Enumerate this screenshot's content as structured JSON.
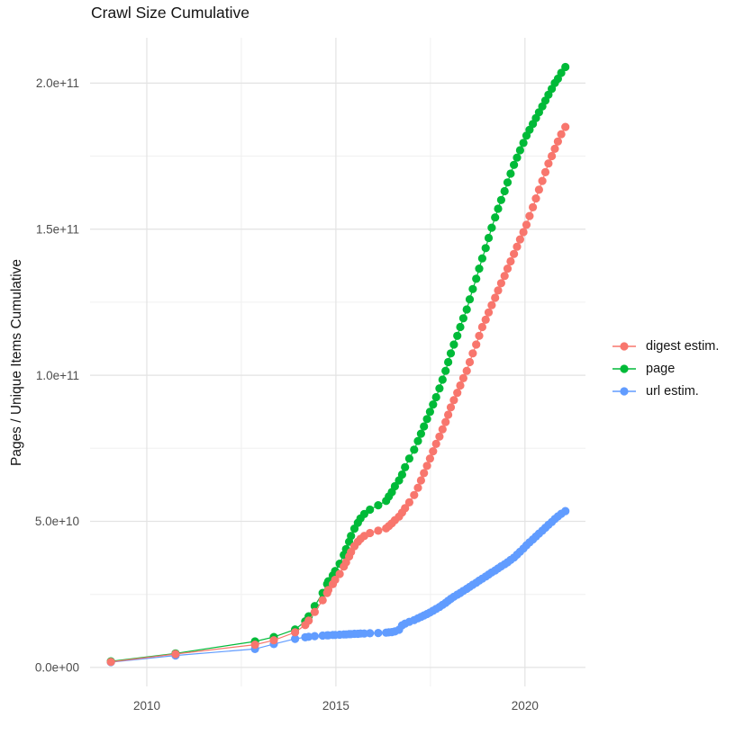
{
  "chart_data": {
    "type": "scatter",
    "title": "Crawl Size Cumulative",
    "xlabel": "",
    "ylabel": "Pages / Unique Items Cumulative",
    "y_unit": "items (stored values are billions, i.e. value * 1e9)",
    "xlim": [
      2008.5,
      2021.6
    ],
    "ylim_billions": [
      -6.5,
      215.5
    ],
    "x_ticks": [
      {
        "value": 2010,
        "label": "2010"
      },
      {
        "value": 2015,
        "label": "2015"
      },
      {
        "value": 2020,
        "label": "2020"
      }
    ],
    "y_ticks": [
      {
        "value": 0,
        "label": "0.0e+00"
      },
      {
        "value": 50,
        "label": "5.0e+10"
      },
      {
        "value": 100,
        "label": "1.0e+11"
      },
      {
        "value": 150,
        "label": "1.5e+11"
      },
      {
        "value": 200,
        "label": "2.0e+11"
      }
    ],
    "x_minor_ticks": [
      2012.5,
      2017.5
    ],
    "y_minor_ticks": [
      25,
      75,
      125,
      175
    ],
    "grid": "major+minor, light gray on white, no axis lines, no tick marks",
    "legend_position": "right-center",
    "style": {
      "major_grid_color": "#e3e3e3",
      "minor_grid_color": "#f0f0f0",
      "tick_label_color": "#4d4d4d",
      "text_color": "#141414",
      "background": "#ffffff",
      "point_radius": 4.6
    },
    "series": [
      {
        "name": "digest estim.",
        "color": "#F8766D",
        "points": [
          [
            2009.05,
            1.9
          ],
          [
            2010.76,
            4.6
          ],
          [
            2012.86,
            7.8
          ],
          [
            2013.36,
            9.3
          ],
          [
            2013.92,
            12.0
          ],
          [
            2014.19,
            14.5
          ],
          [
            2014.28,
            16.0
          ],
          [
            2014.44,
            19.0
          ],
          [
            2014.65,
            23.0
          ],
          [
            2014.77,
            25.5
          ],
          [
            2014.8,
            26.5
          ],
          [
            2014.92,
            28.5
          ],
          [
            2014.98,
            30.0
          ],
          [
            2015.1,
            32.0
          ],
          [
            2015.21,
            34.5
          ],
          [
            2015.27,
            36.0
          ],
          [
            2015.35,
            38.0
          ],
          [
            2015.4,
            39.5
          ],
          [
            2015.49,
            41.5
          ],
          [
            2015.58,
            43.0
          ],
          [
            2015.65,
            44.0
          ],
          [
            2015.75,
            45.0
          ],
          [
            2015.9,
            46.0
          ],
          [
            2016.12,
            46.8
          ],
          [
            2016.33,
            47.6
          ],
          [
            2016.4,
            48.4
          ],
          [
            2016.48,
            49.3
          ],
          [
            2016.56,
            50.4
          ],
          [
            2016.67,
            51.6
          ],
          [
            2016.75,
            53.0
          ],
          [
            2016.83,
            54.5
          ],
          [
            2016.94,
            56.5
          ],
          [
            2017.07,
            59.0
          ],
          [
            2017.17,
            61.5
          ],
          [
            2017.25,
            64.0
          ],
          [
            2017.33,
            66.5
          ],
          [
            2017.41,
            69.0
          ],
          [
            2017.49,
            71.5
          ],
          [
            2017.57,
            74.0
          ],
          [
            2017.65,
            76.5
          ],
          [
            2017.74,
            79.0
          ],
          [
            2017.82,
            81.5
          ],
          [
            2017.9,
            84.0
          ],
          [
            2017.97,
            86.5
          ],
          [
            2018.04,
            89.0
          ],
          [
            2018.12,
            91.5
          ],
          [
            2018.21,
            94.0
          ],
          [
            2018.29,
            96.5
          ],
          [
            2018.37,
            99.0
          ],
          [
            2018.46,
            101.5
          ],
          [
            2018.54,
            104.5
          ],
          [
            2018.62,
            107.5
          ],
          [
            2018.71,
            110.5
          ],
          [
            2018.79,
            113.5
          ],
          [
            2018.87,
            116.5
          ],
          [
            2018.96,
            119.0
          ],
          [
            2019.04,
            121.5
          ],
          [
            2019.12,
            124.0
          ],
          [
            2019.21,
            126.5
          ],
          [
            2019.29,
            129.0
          ],
          [
            2019.37,
            131.5
          ],
          [
            2019.46,
            134.0
          ],
          [
            2019.54,
            136.5
          ],
          [
            2019.62,
            139.0
          ],
          [
            2019.71,
            141.5
          ],
          [
            2019.79,
            144.0
          ],
          [
            2019.87,
            146.5
          ],
          [
            2019.96,
            149.0
          ],
          [
            2020.04,
            151.5
          ],
          [
            2020.12,
            154.5
          ],
          [
            2020.21,
            157.5
          ],
          [
            2020.29,
            160.5
          ],
          [
            2020.37,
            163.5
          ],
          [
            2020.46,
            166.5
          ],
          [
            2020.54,
            169.5
          ],
          [
            2020.62,
            172.5
          ],
          [
            2020.71,
            175.0
          ],
          [
            2020.79,
            177.5
          ],
          [
            2020.87,
            180.0
          ],
          [
            2020.96,
            182.5
          ],
          [
            2021.07,
            185.0
          ]
        ]
      },
      {
        "name": "page",
        "color": "#00BA38",
        "points": [
          [
            2009.05,
            2.1
          ],
          [
            2010.76,
            4.8
          ],
          [
            2012.86,
            8.9
          ],
          [
            2013.36,
            10.4
          ],
          [
            2013.92,
            13.0
          ],
          [
            2014.19,
            15.8
          ],
          [
            2014.28,
            17.5
          ],
          [
            2014.44,
            21.0
          ],
          [
            2014.65,
            25.5
          ],
          [
            2014.77,
            28.5
          ],
          [
            2014.8,
            29.5
          ],
          [
            2014.92,
            31.5
          ],
          [
            2014.98,
            33.0
          ],
          [
            2015.1,
            35.5
          ],
          [
            2015.21,
            38.5
          ],
          [
            2015.27,
            40.5
          ],
          [
            2015.35,
            43.0
          ],
          [
            2015.4,
            45.0
          ],
          [
            2015.49,
            47.5
          ],
          [
            2015.58,
            49.5
          ],
          [
            2015.65,
            51.0
          ],
          [
            2015.75,
            52.5
          ],
          [
            2015.9,
            54.0
          ],
          [
            2016.12,
            55.5
          ],
          [
            2016.33,
            57.0
          ],
          [
            2016.4,
            58.5
          ],
          [
            2016.48,
            60.0
          ],
          [
            2016.56,
            62.0
          ],
          [
            2016.67,
            64.0
          ],
          [
            2016.75,
            66.0
          ],
          [
            2016.83,
            68.5
          ],
          [
            2016.94,
            71.5
          ],
          [
            2017.07,
            74.5
          ],
          [
            2017.17,
            77.5
          ],
          [
            2017.25,
            80.0
          ],
          [
            2017.33,
            82.5
          ],
          [
            2017.41,
            85.0
          ],
          [
            2017.49,
            87.5
          ],
          [
            2017.57,
            90.0
          ],
          [
            2017.65,
            92.5
          ],
          [
            2017.74,
            95.5
          ],
          [
            2017.82,
            98.5
          ],
          [
            2017.9,
            101.5
          ],
          [
            2017.97,
            104.5
          ],
          [
            2018.04,
            107.5
          ],
          [
            2018.12,
            110.5
          ],
          [
            2018.21,
            113.5
          ],
          [
            2018.29,
            116.5
          ],
          [
            2018.37,
            119.5
          ],
          [
            2018.46,
            122.5
          ],
          [
            2018.54,
            126.0
          ],
          [
            2018.62,
            129.5
          ],
          [
            2018.71,
            133.0
          ],
          [
            2018.79,
            136.5
          ],
          [
            2018.87,
            140.0
          ],
          [
            2018.96,
            143.5
          ],
          [
            2019.04,
            147.0
          ],
          [
            2019.12,
            150.5
          ],
          [
            2019.21,
            154.0
          ],
          [
            2019.29,
            157.0
          ],
          [
            2019.37,
            160.0
          ],
          [
            2019.46,
            163.0
          ],
          [
            2019.54,
            166.0
          ],
          [
            2019.62,
            169.0
          ],
          [
            2019.71,
            172.0
          ],
          [
            2019.79,
            174.5
          ],
          [
            2019.87,
            177.0
          ],
          [
            2019.96,
            179.5
          ],
          [
            2020.04,
            182.0
          ],
          [
            2020.12,
            184.0
          ],
          [
            2020.21,
            186.0
          ],
          [
            2020.29,
            188.0
          ],
          [
            2020.37,
            190.0
          ],
          [
            2020.46,
            192.0
          ],
          [
            2020.54,
            194.0
          ],
          [
            2020.62,
            196.0
          ],
          [
            2020.71,
            198.0
          ],
          [
            2020.79,
            200.0
          ],
          [
            2020.87,
            201.5
          ],
          [
            2020.96,
            203.5
          ],
          [
            2021.07,
            205.5
          ]
        ]
      },
      {
        "name": "url estim.",
        "color": "#619CFF",
        "points": [
          [
            2009.05,
            1.8
          ],
          [
            2010.76,
            4.1
          ],
          [
            2012.86,
            6.3
          ],
          [
            2013.36,
            8.0
          ],
          [
            2013.92,
            9.8
          ],
          [
            2014.19,
            10.3
          ],
          [
            2014.28,
            10.5
          ],
          [
            2014.44,
            10.7
          ],
          [
            2014.65,
            10.9
          ],
          [
            2014.77,
            11.0
          ],
          [
            2014.8,
            11.0
          ],
          [
            2014.92,
            11.1
          ],
          [
            2014.98,
            11.1
          ],
          [
            2015.1,
            11.2
          ],
          [
            2015.21,
            11.3
          ],
          [
            2015.27,
            11.3
          ],
          [
            2015.35,
            11.4
          ],
          [
            2015.4,
            11.4
          ],
          [
            2015.49,
            11.5
          ],
          [
            2015.58,
            11.5
          ],
          [
            2015.65,
            11.6
          ],
          [
            2015.75,
            11.6
          ],
          [
            2015.9,
            11.7
          ],
          [
            2016.12,
            11.8
          ],
          [
            2016.33,
            11.9
          ],
          [
            2016.4,
            12.0
          ],
          [
            2016.48,
            12.1
          ],
          [
            2016.56,
            12.3
          ],
          [
            2016.67,
            12.9
          ],
          [
            2016.75,
            14.4
          ],
          [
            2016.83,
            15.0
          ],
          [
            2016.94,
            15.6
          ],
          [
            2017.07,
            16.2
          ],
          [
            2017.17,
            16.8
          ],
          [
            2017.25,
            17.3
          ],
          [
            2017.33,
            17.8
          ],
          [
            2017.41,
            18.3
          ],
          [
            2017.49,
            18.8
          ],
          [
            2017.57,
            19.4
          ],
          [
            2017.65,
            20.0
          ],
          [
            2017.74,
            20.7
          ],
          [
            2017.82,
            21.4
          ],
          [
            2017.9,
            22.1
          ],
          [
            2017.97,
            22.8
          ],
          [
            2018.04,
            23.5
          ],
          [
            2018.12,
            24.2
          ],
          [
            2018.21,
            24.9
          ],
          [
            2018.29,
            25.5
          ],
          [
            2018.37,
            26.2
          ],
          [
            2018.46,
            26.9
          ],
          [
            2018.54,
            27.6
          ],
          [
            2018.62,
            28.3
          ],
          [
            2018.71,
            29.0
          ],
          [
            2018.79,
            29.7
          ],
          [
            2018.87,
            30.4
          ],
          [
            2018.96,
            31.1
          ],
          [
            2019.04,
            31.8
          ],
          [
            2019.12,
            32.5
          ],
          [
            2019.21,
            33.2
          ],
          [
            2019.29,
            33.9
          ],
          [
            2019.37,
            34.6
          ],
          [
            2019.46,
            35.3
          ],
          [
            2019.54,
            36.0
          ],
          [
            2019.62,
            36.8
          ],
          [
            2019.71,
            37.6
          ],
          [
            2019.79,
            38.6
          ],
          [
            2019.87,
            39.6
          ],
          [
            2019.96,
            40.7
          ],
          [
            2020.04,
            41.8
          ],
          [
            2020.12,
            42.8
          ],
          [
            2020.21,
            43.8
          ],
          [
            2020.29,
            44.8
          ],
          [
            2020.37,
            45.8
          ],
          [
            2020.46,
            46.8
          ],
          [
            2020.54,
            47.8
          ],
          [
            2020.62,
            48.8
          ],
          [
            2020.71,
            49.8
          ],
          [
            2020.79,
            50.8
          ],
          [
            2020.87,
            51.7
          ],
          [
            2020.96,
            52.6
          ],
          [
            2021.07,
            53.5
          ]
        ]
      }
    ]
  }
}
